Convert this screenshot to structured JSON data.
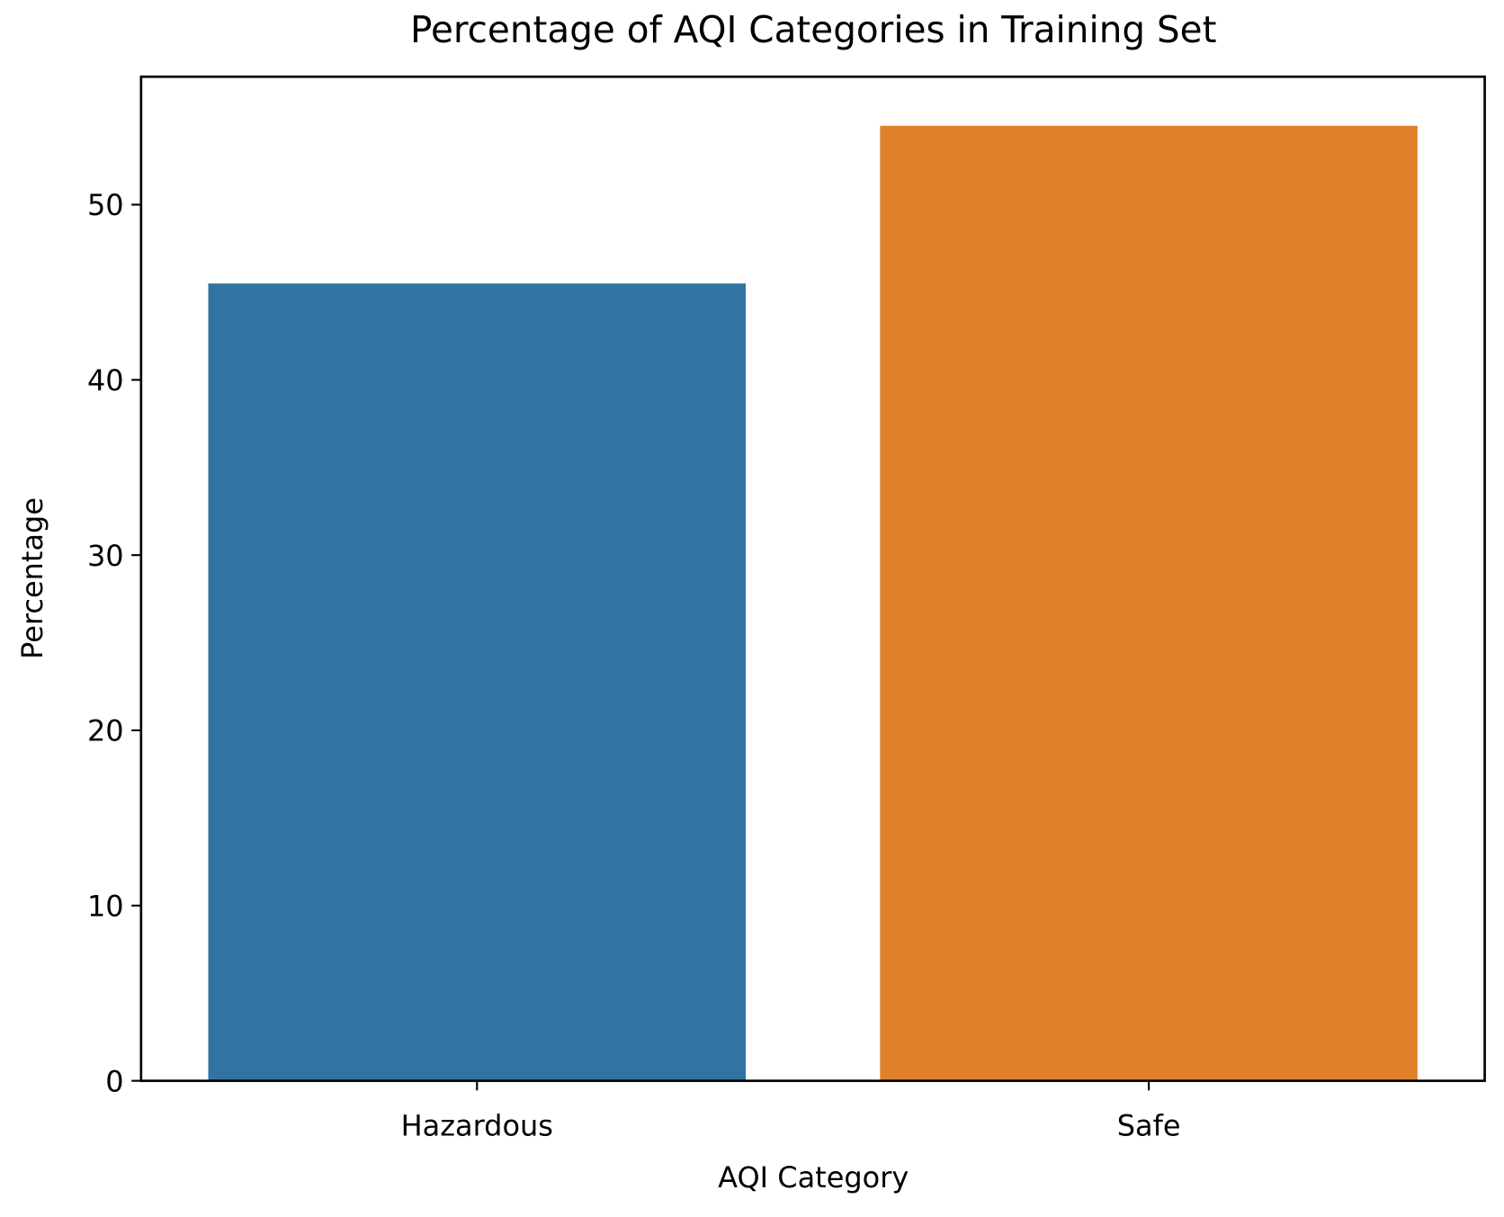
{
  "chart_data": {
    "type": "bar",
    "title": "Percentage of AQI Categories in Training Set",
    "x_label": "AQI Category",
    "y_label": "Percentage",
    "categories": [
      "Hazardous",
      "Safe"
    ],
    "values": [
      45.5,
      54.5
    ],
    "colors": [
      "#3274a1",
      "#e1812c"
    ],
    "ylim": [
      0,
      57.3
    ],
    "yticks": [
      0,
      10,
      20,
      30,
      40,
      50
    ],
    "grid": false
  }
}
